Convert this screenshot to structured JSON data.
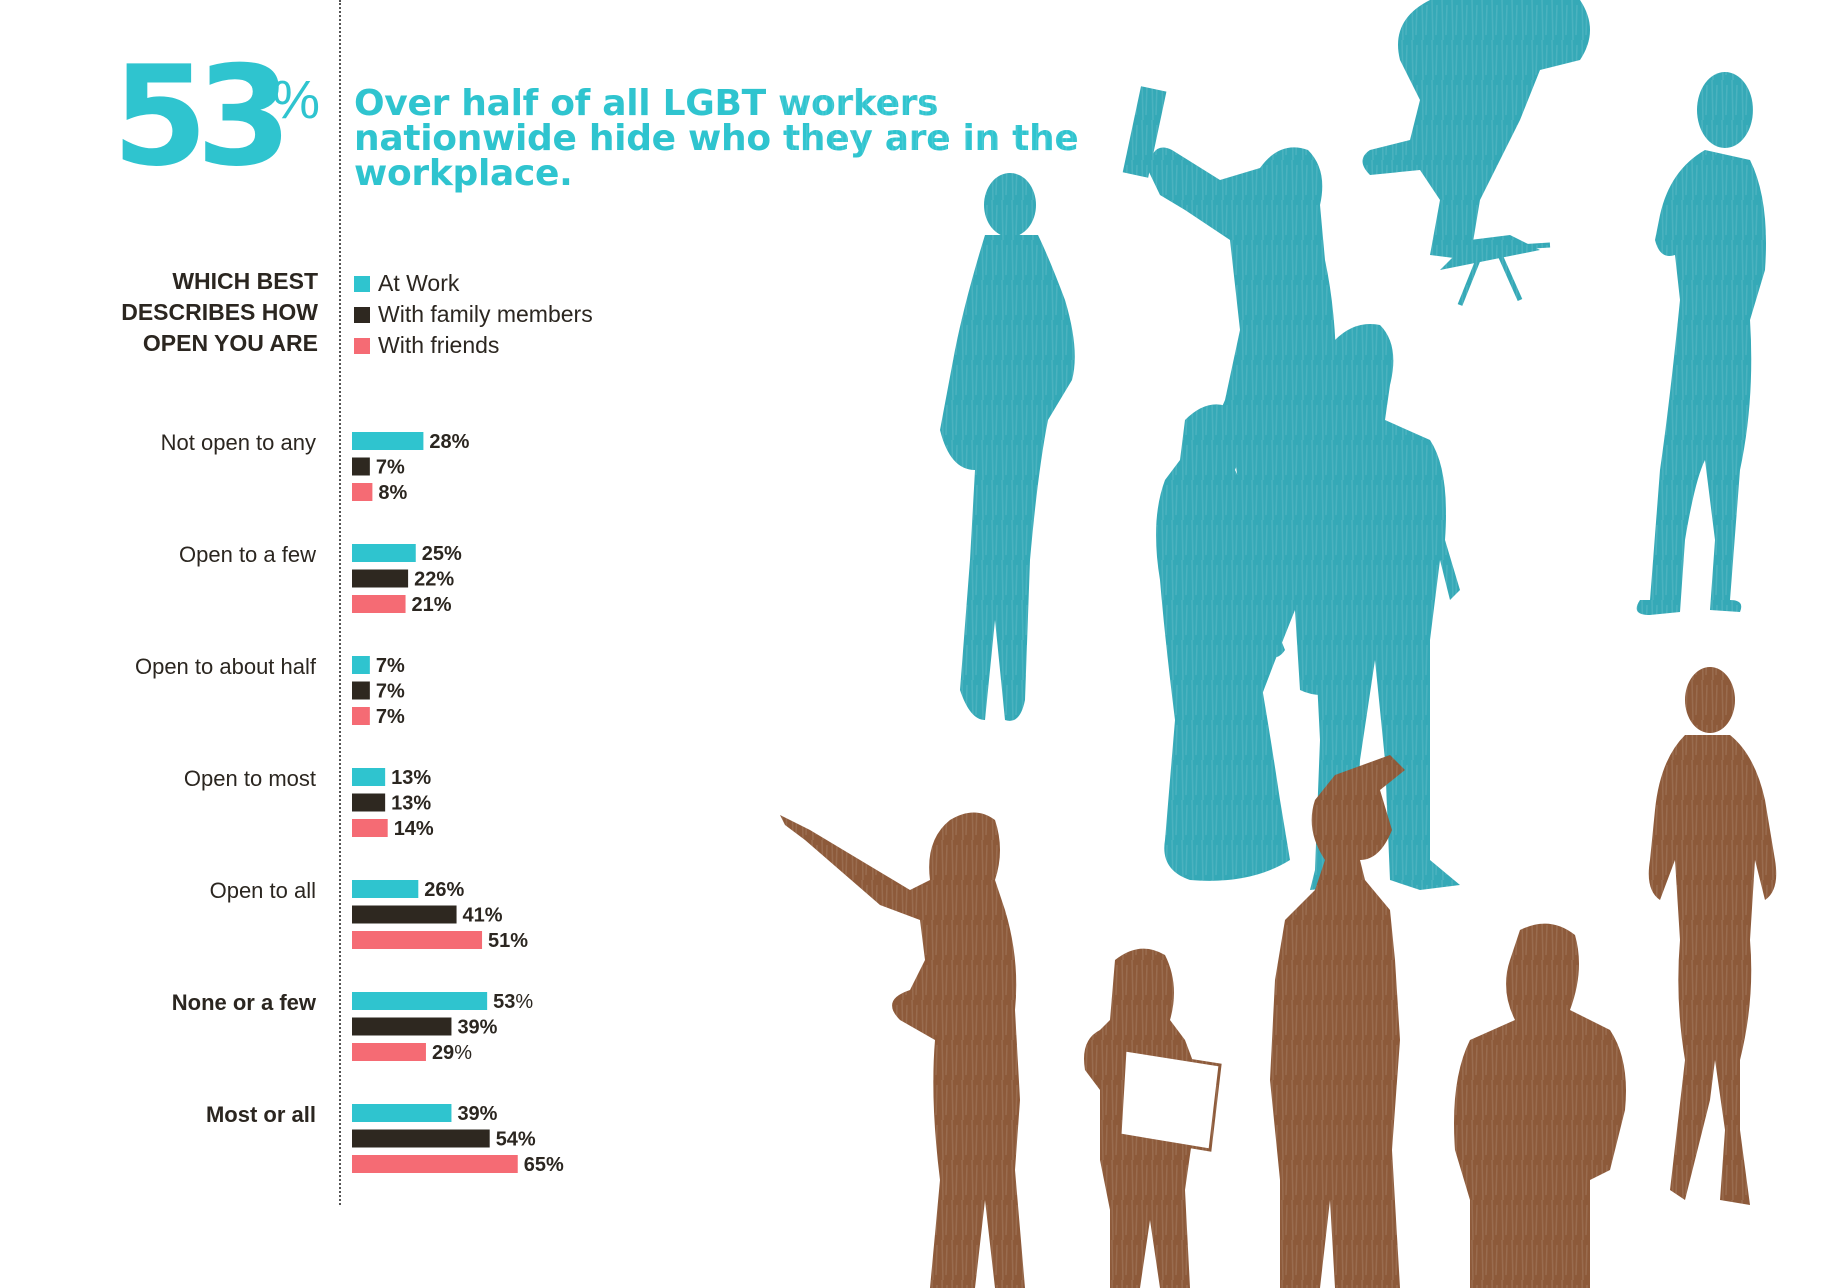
{
  "headline": {
    "stat_value": "53",
    "stat_unit": "%",
    "text": "Over half of all LGBT workers nationwide hide who they are in the workplace."
  },
  "question": {
    "line1": "WHICH BEST",
    "line2": "DESCRIBES HOW",
    "line3": "OPEN YOU ARE"
  },
  "colors": {
    "at_work": "#2fc4cf",
    "family": "#2e2820",
    "friends": "#f56b74",
    "teal_figures": "#35a9b7",
    "brown_figures": "#8d5a3a"
  },
  "chart_data": {
    "type": "bar",
    "orientation": "horizontal",
    "title": "",
    "xlabel": "",
    "ylabel": "",
    "xlim": [
      0,
      65
    ],
    "grid": false,
    "legend_placement": "top-left",
    "categories": [
      "Not open to any",
      "Open to a few",
      "Open to about half",
      "Open to most",
      "Open to all",
      "None or a few",
      "Most or all"
    ],
    "bold_categories": [
      "None or a few",
      "Most or all"
    ],
    "series": [
      {
        "name": "At Work",
        "values": [
          28,
          25,
          7,
          13,
          26,
          53,
          39
        ]
      },
      {
        "name": "With family members",
        "values": [
          7,
          22,
          7,
          13,
          41,
          39,
          54
        ]
      },
      {
        "name": "With friends",
        "values": [
          8,
          21,
          7,
          14,
          51,
          29,
          65
        ]
      }
    ],
    "value_labels": [
      [
        "28%",
        "7%",
        "8%"
      ],
      [
        "25%",
        "22%",
        "21%"
      ],
      [
        "7%",
        "7%",
        "7%"
      ],
      [
        "13%",
        "13%",
        "14%"
      ],
      [
        "26%",
        "41%",
        "51%"
      ],
      [
        "53%",
        "39%",
        "29%"
      ],
      [
        "39%",
        "54%",
        "65%"
      ]
    ],
    "light_percent_labels": [
      [
        5,
        0
      ],
      [
        5,
        2
      ]
    ]
  },
  "illustration": {
    "teal_figures": [
      "woman-in-dress-figure",
      "painter-figure",
      "worker-on-stool-figure",
      "businesswoman-figure",
      "woman-in-long-dress-figure",
      "businessman-figure"
    ],
    "brown_figures": [
      "pointing-woman-figure",
      "woman-with-clipboard-figure",
      "police-officer-figure",
      "seated-man-figure",
      "standing-woman-figure"
    ]
  }
}
